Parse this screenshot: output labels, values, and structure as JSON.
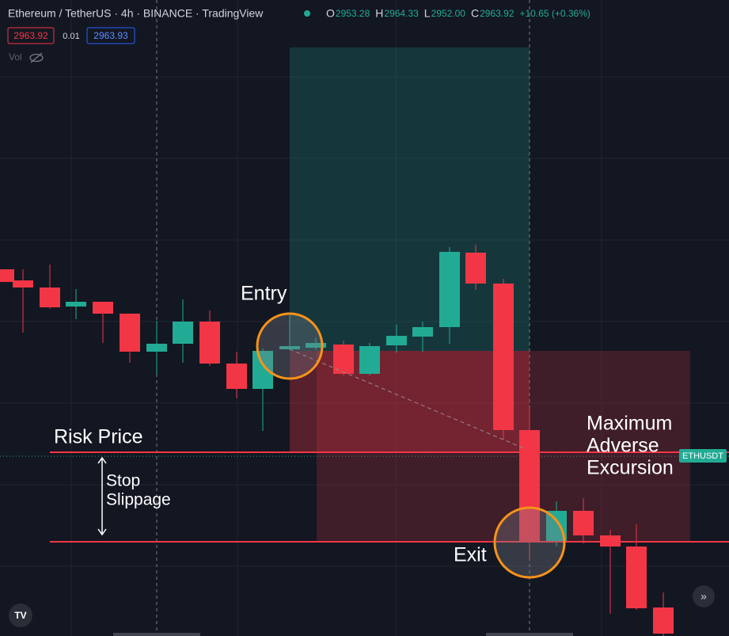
{
  "header": {
    "title": "Ethereum / TetherUS · 4h · BINANCE · TradingView",
    "ohlc": [
      {
        "label": "O",
        "value": "2953.28"
      },
      {
        "label": "H",
        "value": "2964.33"
      },
      {
        "label": "L",
        "value": "2952.00"
      },
      {
        "label": "C",
        "value": "2963.92"
      }
    ],
    "change": "+10.65 (+0.36%)",
    "bid": "2963.92",
    "spread": "0.01",
    "ask": "2963.93",
    "volume": "Vol"
  },
  "annotations": {
    "entry": "Entry",
    "risk_price": "Risk Price",
    "stop_slippage": [
      "Stop",
      "Slippage"
    ],
    "exit": "Exit",
    "mae": [
      "Maximum",
      "Adverse",
      "Excursion"
    ]
  },
  "symbol_tag": "ETHUSDT"
}
